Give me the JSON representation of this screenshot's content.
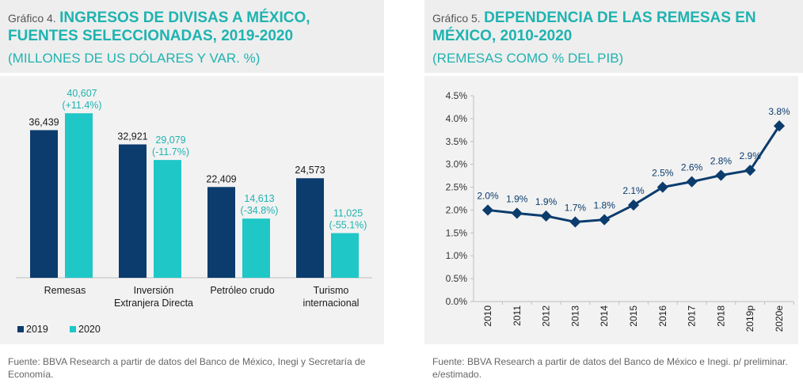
{
  "chart1": {
    "prefix": "Gráfico 4.",
    "title": "INGRESOS DE DIVISAS A MÉXICO, FUENTES SELECCIONADAS, 2019-2020",
    "subtitle": "(MILLONES DE US DÓLARES Y VAR. %)",
    "source": "Fuente: BBVA Research a partir de datos del Banco de México, Inegi y Secretaría de Economía."
  },
  "chart2": {
    "prefix": "Gráfico 5.",
    "title": "DEPENDENCIA DE LAS REMESAS EN MÉXICO, 2010-2020",
    "subtitle": "(REMESAS COMO % DEL PIB)",
    "source": "Fuente: BBVA Research a partir de datos del Banco de México e Inegi. p/ preliminar. e/estimado."
  },
  "chart_data": [
    {
      "type": "bar",
      "categories": [
        [
          "Remesas"
        ],
        [
          "Inversión",
          "Extranjera Directa"
        ],
        [
          "Petróleo crudo"
        ],
        [
          "Turismo",
          "internacional"
        ]
      ],
      "series": [
        {
          "name": "2019",
          "color": "#0b3c6d",
          "values": [
            36439,
            32921,
            22409,
            24573
          ],
          "labels": [
            [
              "36,439"
            ],
            [
              "32,921"
            ],
            [
              "22,409"
            ],
            [
              "24,573"
            ]
          ]
        },
        {
          "name": "2020",
          "color": "#1fc7c7",
          "values": [
            40607,
            29079,
            14613,
            11025
          ],
          "labels": [
            [
              "40,607",
              "(+11.4%)"
            ],
            [
              "29,079",
              "(-11.7%)"
            ],
            [
              "14,613",
              "(-34.8%)"
            ],
            [
              "11,025",
              "(-55.1%)"
            ]
          ]
        }
      ],
      "ylim": [
        0,
        42000
      ],
      "legend": "bottom-left"
    },
    {
      "type": "line",
      "x": [
        "2010",
        "2011",
        "2012",
        "2013",
        "2014",
        "2015",
        "2016",
        "2017",
        "2018",
        "2019p",
        "2020e"
      ],
      "series": [
        {
          "values": [
            2.0,
            1.93,
            1.87,
            1.74,
            1.79,
            2.11,
            2.5,
            2.62,
            2.76,
            2.87,
            3.84
          ],
          "labels": [
            "2.0%",
            "1.9%",
            "1.9%",
            "1.7%",
            "1.8%",
            "2.1%",
            "2.5%",
            "2.6%",
            "2.8%",
            "2.9%",
            "3.8%"
          ],
          "color": "#0b3c6d"
        }
      ],
      "yticks": [
        "0.0%",
        "0.5%",
        "1.0%",
        "1.5%",
        "2.0%",
        "2.5%",
        "3.0%",
        "3.5%",
        "4.0%",
        "4.5%"
      ],
      "ylim": [
        0,
        4.5
      ],
      "grid": false
    }
  ]
}
